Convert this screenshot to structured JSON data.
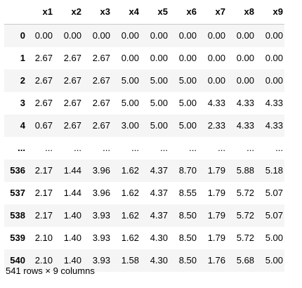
{
  "dataframe": {
    "columns": [
      "x1",
      "x2",
      "x3",
      "x4",
      "x5",
      "x6",
      "x7",
      "x8",
      "x9"
    ],
    "rows": [
      {
        "index": "0",
        "values": [
          "0.00",
          "0.00",
          "0.00",
          "0.00",
          "0.00",
          "0.00",
          "0.00",
          "0.00",
          "0.00"
        ]
      },
      {
        "index": "1",
        "values": [
          "2.67",
          "2.67",
          "2.67",
          "0.00",
          "0.00",
          "0.00",
          "0.00",
          "0.00",
          "0.00"
        ]
      },
      {
        "index": "2",
        "values": [
          "2.67",
          "2.67",
          "2.67",
          "5.00",
          "5.00",
          "5.00",
          "0.00",
          "0.00",
          "0.00"
        ]
      },
      {
        "index": "3",
        "values": [
          "2.67",
          "2.67",
          "2.67",
          "5.00",
          "5.00",
          "5.00",
          "4.33",
          "4.33",
          "4.33"
        ]
      },
      {
        "index": "4",
        "values": [
          "0.67",
          "2.67",
          "2.67",
          "3.00",
          "5.00",
          "5.00",
          "2.33",
          "4.33",
          "4.33"
        ]
      },
      {
        "index": "...",
        "values": [
          "...",
          "...",
          "...",
          "...",
          "...",
          "...",
          "...",
          "...",
          "..."
        ]
      },
      {
        "index": "536",
        "values": [
          "2.17",
          "1.44",
          "3.96",
          "1.62",
          "4.37",
          "8.70",
          "1.79",
          "5.88",
          "5.18"
        ]
      },
      {
        "index": "537",
        "values": [
          "2.17",
          "1.44",
          "3.96",
          "1.62",
          "4.37",
          "8.55",
          "1.79",
          "5.72",
          "5.07"
        ]
      },
      {
        "index": "538",
        "values": [
          "2.17",
          "1.40",
          "3.93",
          "1.62",
          "4.37",
          "8.50",
          "1.79",
          "5.72",
          "5.07"
        ]
      },
      {
        "index": "539",
        "values": [
          "2.10",
          "1.40",
          "3.93",
          "1.62",
          "4.30",
          "8.50",
          "1.79",
          "5.72",
          "5.00"
        ]
      },
      {
        "index": "540",
        "values": [
          "2.10",
          "1.40",
          "3.93",
          "1.58",
          "4.30",
          "8.50",
          "1.76",
          "5.68",
          "5.00"
        ]
      }
    ],
    "shape_caption": "541 rows × 9 columns"
  },
  "colors": {
    "striped_row": "#f5f5f5",
    "header_rule": "#c8c8c8",
    "text": "#000000"
  }
}
